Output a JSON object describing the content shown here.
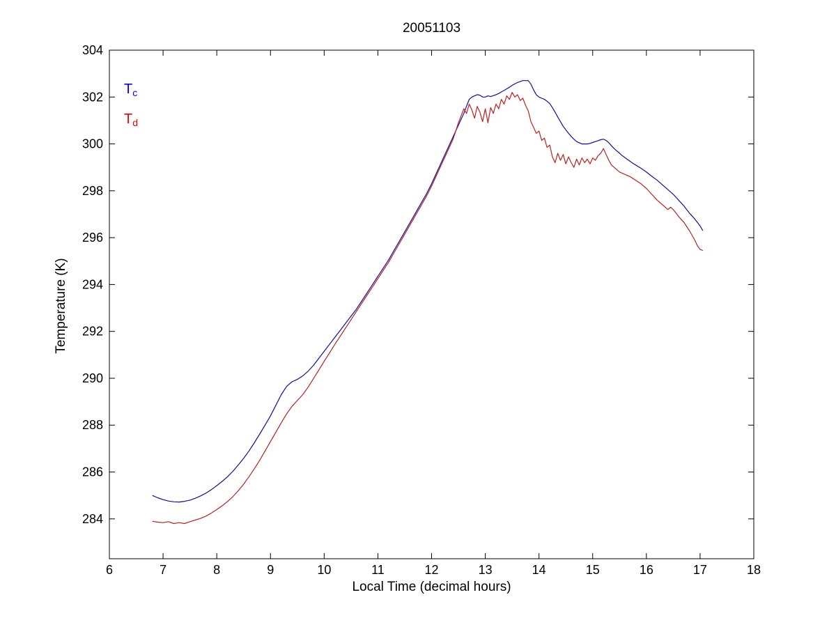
{
  "figure": {
    "background": "#ffffff",
    "axis_color": "#000000"
  },
  "chart_data": {
    "type": "line",
    "title": "20051103",
    "xlabel": "Local Time (decimal hours)",
    "ylabel": "Temperature (K)",
    "xlim": [
      6,
      18
    ],
    "ylim": [
      282.3,
      304
    ],
    "xticks": [
      6,
      7,
      8,
      9,
      10,
      11,
      12,
      13,
      14,
      15,
      16,
      17,
      18
    ],
    "yticks": [
      284,
      286,
      288,
      290,
      292,
      294,
      296,
      298,
      300,
      302,
      304
    ],
    "grid": false,
    "legend": {
      "position": "top-left-inside",
      "entries": [
        {
          "label_main": "T",
          "label_sub": "c",
          "color": "#0000ee"
        },
        {
          "label_main": "T",
          "label_sub": "d",
          "color": "#ee0000"
        }
      ]
    },
    "series": [
      {
        "name": "Tc",
        "color": "#0f0f9c",
        "points": [
          [
            6.8,
            285.0
          ],
          [
            6.9,
            284.9
          ],
          [
            7.0,
            284.82
          ],
          [
            7.1,
            284.76
          ],
          [
            7.2,
            284.73
          ],
          [
            7.3,
            284.72
          ],
          [
            7.4,
            284.75
          ],
          [
            7.5,
            284.8
          ],
          [
            7.6,
            284.88
          ],
          [
            7.7,
            284.98
          ],
          [
            7.8,
            285.1
          ],
          [
            7.9,
            285.25
          ],
          [
            8.0,
            285.42
          ],
          [
            8.1,
            285.6
          ],
          [
            8.2,
            285.8
          ],
          [
            8.3,
            286.03
          ],
          [
            8.4,
            286.3
          ],
          [
            8.5,
            286.58
          ],
          [
            8.6,
            286.9
          ],
          [
            8.7,
            287.25
          ],
          [
            8.8,
            287.62
          ],
          [
            8.9,
            288.0
          ],
          [
            9.0,
            288.4
          ],
          [
            9.1,
            288.85
          ],
          [
            9.2,
            289.3
          ],
          [
            9.3,
            289.65
          ],
          [
            9.4,
            289.85
          ],
          [
            9.5,
            289.95
          ],
          [
            9.6,
            290.1
          ],
          [
            9.7,
            290.3
          ],
          [
            9.8,
            290.55
          ],
          [
            9.9,
            290.85
          ],
          [
            10.0,
            291.15
          ],
          [
            10.1,
            291.45
          ],
          [
            10.2,
            291.75
          ],
          [
            10.3,
            292.05
          ],
          [
            10.4,
            292.35
          ],
          [
            10.5,
            292.65
          ],
          [
            10.6,
            292.95
          ],
          [
            10.7,
            293.3
          ],
          [
            10.8,
            293.65
          ],
          [
            10.9,
            294.0
          ],
          [
            11.0,
            294.35
          ],
          [
            11.1,
            294.7
          ],
          [
            11.2,
            295.05
          ],
          [
            11.3,
            295.45
          ],
          [
            11.4,
            295.85
          ],
          [
            11.5,
            296.25
          ],
          [
            11.6,
            296.65
          ],
          [
            11.7,
            297.05
          ],
          [
            11.8,
            297.45
          ],
          [
            11.9,
            297.85
          ],
          [
            12.0,
            298.3
          ],
          [
            12.1,
            298.8
          ],
          [
            12.2,
            299.3
          ],
          [
            12.3,
            299.8
          ],
          [
            12.4,
            300.3
          ],
          [
            12.5,
            300.8
          ],
          [
            12.6,
            301.3
          ],
          [
            12.65,
            301.6
          ],
          [
            12.7,
            301.9
          ],
          [
            12.75,
            302.0
          ],
          [
            12.8,
            302.05
          ],
          [
            12.85,
            302.1
          ],
          [
            12.9,
            302.08
          ],
          [
            12.95,
            302.0
          ],
          [
            13.0,
            302.0
          ],
          [
            13.05,
            302.05
          ],
          [
            13.1,
            302.02
          ],
          [
            13.15,
            302.06
          ],
          [
            13.2,
            302.1
          ],
          [
            13.25,
            302.15
          ],
          [
            13.3,
            302.22
          ],
          [
            13.35,
            302.28
          ],
          [
            13.4,
            302.35
          ],
          [
            13.45,
            302.42
          ],
          [
            13.5,
            302.5
          ],
          [
            13.55,
            302.56
          ],
          [
            13.6,
            302.62
          ],
          [
            13.65,
            302.66
          ],
          [
            13.7,
            302.7
          ],
          [
            13.75,
            302.7
          ],
          [
            13.8,
            302.7
          ],
          [
            13.85,
            302.55
          ],
          [
            13.9,
            302.3
          ],
          [
            13.95,
            302.1
          ],
          [
            14.0,
            302.0
          ],
          [
            14.05,
            301.95
          ],
          [
            14.1,
            301.9
          ],
          [
            14.15,
            301.82
          ],
          [
            14.2,
            301.72
          ],
          [
            14.25,
            301.55
          ],
          [
            14.3,
            301.35
          ],
          [
            14.35,
            301.15
          ],
          [
            14.4,
            300.95
          ],
          [
            14.45,
            300.75
          ],
          [
            14.5,
            300.6
          ],
          [
            14.55,
            300.45
          ],
          [
            14.6,
            300.32
          ],
          [
            14.65,
            300.2
          ],
          [
            14.7,
            300.1
          ],
          [
            14.75,
            300.05
          ],
          [
            14.8,
            300.0
          ],
          [
            14.85,
            300.0
          ],
          [
            14.9,
            300.0
          ],
          [
            14.95,
            300.02
          ],
          [
            15.0,
            300.06
          ],
          [
            15.05,
            300.1
          ],
          [
            15.1,
            300.14
          ],
          [
            15.15,
            300.18
          ],
          [
            15.2,
            300.2
          ],
          [
            15.25,
            300.15
          ],
          [
            15.3,
            300.05
          ],
          [
            15.35,
            299.92
          ],
          [
            15.4,
            299.8
          ],
          [
            15.45,
            299.7
          ],
          [
            15.5,
            299.6
          ],
          [
            15.55,
            299.5
          ],
          [
            15.6,
            299.42
          ],
          [
            15.65,
            299.33
          ],
          [
            15.7,
            299.25
          ],
          [
            15.75,
            299.17
          ],
          [
            15.8,
            299.1
          ],
          [
            15.85,
            299.03
          ],
          [
            15.9,
            298.96
          ],
          [
            15.95,
            298.88
          ],
          [
            16.0,
            298.8
          ],
          [
            16.1,
            298.62
          ],
          [
            16.2,
            298.45
          ],
          [
            16.3,
            298.25
          ],
          [
            16.4,
            298.05
          ],
          [
            16.5,
            297.85
          ],
          [
            16.6,
            297.6
          ],
          [
            16.7,
            297.35
          ],
          [
            16.8,
            297.05
          ],
          [
            16.9,
            296.8
          ],
          [
            17.0,
            296.5
          ],
          [
            17.05,
            296.3
          ]
        ]
      },
      {
        "name": "Td",
        "color": "#bb2020",
        "points": [
          [
            6.8,
            283.9
          ],
          [
            6.9,
            283.86
          ],
          [
            7.0,
            283.84
          ],
          [
            7.1,
            283.88
          ],
          [
            7.2,
            283.8
          ],
          [
            7.3,
            283.84
          ],
          [
            7.4,
            283.8
          ],
          [
            7.5,
            283.88
          ],
          [
            7.6,
            283.95
          ],
          [
            7.7,
            284.02
          ],
          [
            7.8,
            284.12
          ],
          [
            7.9,
            284.25
          ],
          [
            8.0,
            284.4
          ],
          [
            8.1,
            284.56
          ],
          [
            8.2,
            284.74
          ],
          [
            8.3,
            284.95
          ],
          [
            8.4,
            285.2
          ],
          [
            8.5,
            285.48
          ],
          [
            8.6,
            285.8
          ],
          [
            8.7,
            286.14
          ],
          [
            8.8,
            286.5
          ],
          [
            8.9,
            286.9
          ],
          [
            9.0,
            287.3
          ],
          [
            9.1,
            287.7
          ],
          [
            9.2,
            288.1
          ],
          [
            9.3,
            288.48
          ],
          [
            9.4,
            288.8
          ],
          [
            9.5,
            289.05
          ],
          [
            9.6,
            289.3
          ],
          [
            9.7,
            289.62
          ],
          [
            9.8,
            289.98
          ],
          [
            9.9,
            290.35
          ],
          [
            10.0,
            290.72
          ],
          [
            10.1,
            291.08
          ],
          [
            10.2,
            291.45
          ],
          [
            10.3,
            291.8
          ],
          [
            10.4,
            292.15
          ],
          [
            10.5,
            292.5
          ],
          [
            10.6,
            292.85
          ],
          [
            10.7,
            293.2
          ],
          [
            10.8,
            293.55
          ],
          [
            10.9,
            293.9
          ],
          [
            11.0,
            294.25
          ],
          [
            11.1,
            294.6
          ],
          [
            11.2,
            294.95
          ],
          [
            11.3,
            295.35
          ],
          [
            11.4,
            295.75
          ],
          [
            11.5,
            296.15
          ],
          [
            11.6,
            296.55
          ],
          [
            11.7,
            296.95
          ],
          [
            11.8,
            297.35
          ],
          [
            11.9,
            297.75
          ],
          [
            12.0,
            298.2
          ],
          [
            12.1,
            298.7
          ],
          [
            12.2,
            299.2
          ],
          [
            12.3,
            299.7
          ],
          [
            12.4,
            300.2
          ],
          [
            12.45,
            300.55
          ],
          [
            12.5,
            300.9
          ],
          [
            12.55,
            301.2
          ],
          [
            12.6,
            301.5
          ],
          [
            12.65,
            301.3
          ],
          [
            12.7,
            301.7
          ],
          [
            12.75,
            301.45
          ],
          [
            12.8,
            301.1
          ],
          [
            12.85,
            301.6
          ],
          [
            12.9,
            301.35
          ],
          [
            12.95,
            300.95
          ],
          [
            13.0,
            301.5
          ],
          [
            13.05,
            300.9
          ],
          [
            13.1,
            301.55
          ],
          [
            13.15,
            301.3
          ],
          [
            13.2,
            301.7
          ],
          [
            13.25,
            301.5
          ],
          [
            13.3,
            301.9
          ],
          [
            13.35,
            301.7
          ],
          [
            13.4,
            302.05
          ],
          [
            13.45,
            301.9
          ],
          [
            13.5,
            302.2
          ],
          [
            13.55,
            302.0
          ],
          [
            13.6,
            302.1
          ],
          [
            13.65,
            301.85
          ],
          [
            13.7,
            301.95
          ],
          [
            13.75,
            301.65
          ],
          [
            13.8,
            301.4
          ],
          [
            13.85,
            300.95
          ],
          [
            13.9,
            300.7
          ],
          [
            13.95,
            300.45
          ],
          [
            14.0,
            300.55
          ],
          [
            14.05,
            300.15
          ],
          [
            14.1,
            300.25
          ],
          [
            14.15,
            299.85
          ],
          [
            14.2,
            299.95
          ],
          [
            14.25,
            299.45
          ],
          [
            14.3,
            299.2
          ],
          [
            14.35,
            299.6
          ],
          [
            14.4,
            299.3
          ],
          [
            14.45,
            299.55
          ],
          [
            14.5,
            299.15
          ],
          [
            14.55,
            299.45
          ],
          [
            14.6,
            299.2
          ],
          [
            14.65,
            299.0
          ],
          [
            14.7,
            299.35
          ],
          [
            14.75,
            299.1
          ],
          [
            14.8,
            299.4
          ],
          [
            14.85,
            299.2
          ],
          [
            14.9,
            299.35
          ],
          [
            14.95,
            299.15
          ],
          [
            15.0,
            299.4
          ],
          [
            15.05,
            299.3
          ],
          [
            15.1,
            299.5
          ],
          [
            15.15,
            299.6
          ],
          [
            15.2,
            299.8
          ],
          [
            15.25,
            299.55
          ],
          [
            15.3,
            299.3
          ],
          [
            15.35,
            299.1
          ],
          [
            15.4,
            299.0
          ],
          [
            15.45,
            298.9
          ],
          [
            15.5,
            298.8
          ],
          [
            15.6,
            298.7
          ],
          [
            15.7,
            298.6
          ],
          [
            15.8,
            298.45
          ],
          [
            15.9,
            298.3
          ],
          [
            16.0,
            298.1
          ],
          [
            16.1,
            297.85
          ],
          [
            16.2,
            297.6
          ],
          [
            16.3,
            297.4
          ],
          [
            16.4,
            297.2
          ],
          [
            16.45,
            297.3
          ],
          [
            16.5,
            297.2
          ],
          [
            16.6,
            296.9
          ],
          [
            16.7,
            296.65
          ],
          [
            16.8,
            296.3
          ],
          [
            16.9,
            295.9
          ],
          [
            16.95,
            295.65
          ],
          [
            17.0,
            295.5
          ],
          [
            17.05,
            295.45
          ]
        ]
      }
    ]
  }
}
